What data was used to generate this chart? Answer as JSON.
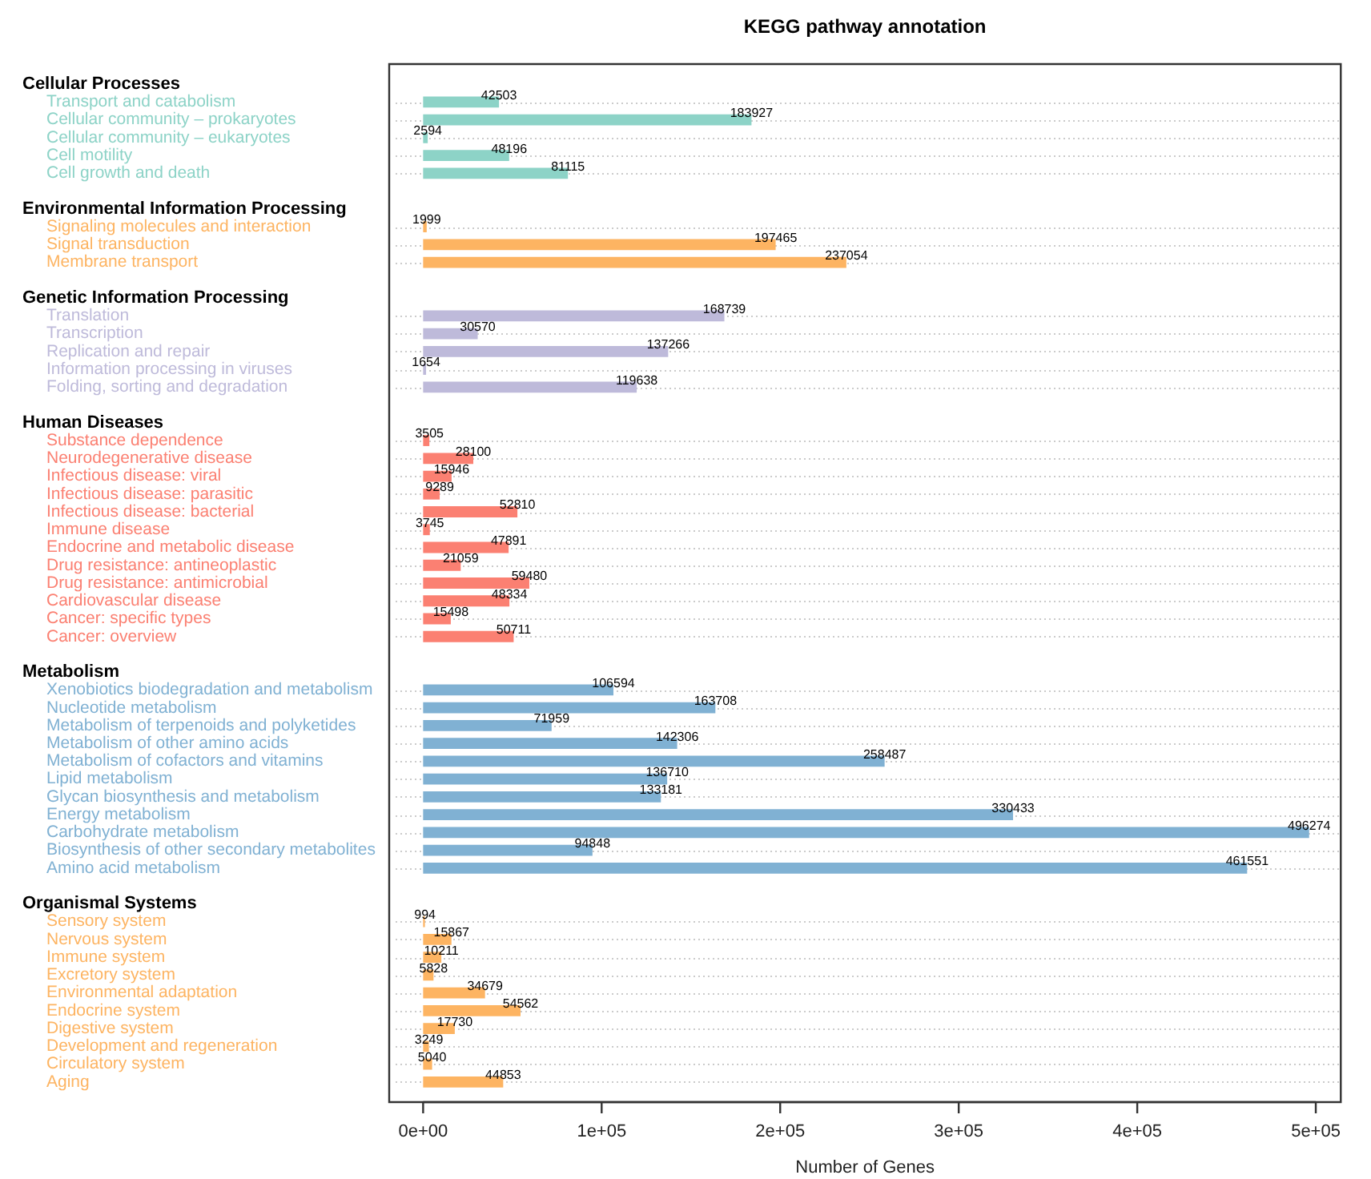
{
  "chart_data": {
    "type": "bar",
    "orientation": "horizontal",
    "title": "KEGG pathway annotation",
    "xlabel": "Number of Genes",
    "annotations": [
      "Cellular Processes",
      "Environmental Information Processing",
      "Genetic Information Processing",
      "Human Diseases",
      "Metabolism",
      "Organismal Systems"
    ],
    "categories": [
      null,
      "Transport and catabolism",
      "Cellular community – prokaryotes",
      "Cellular community – eukaryotes",
      "Cell motility",
      "Cell growth and death",
      null,
      null,
      "Signaling molecules and interaction",
      "Signal transduction",
      "Membrane transport",
      null,
      null,
      "Translation",
      "Transcription",
      "Replication and repair",
      "Information processing in viruses",
      "Folding, sorting and degradation",
      null,
      null,
      "Substance dependence",
      "Neurodegenerative disease",
      "Infectious disease: viral",
      "Infectious disease: parasitic",
      "Infectious disease: bacterial",
      "Immune disease",
      "Endocrine and metabolic disease",
      "Drug resistance: antineoplastic",
      "Drug resistance: antimicrobial",
      "Cardiovascular disease",
      "Cancer: specific types",
      "Cancer: overview",
      null,
      null,
      "Xenobiotics biodegradation and metabolism",
      "Nucleotide metabolism",
      "Metabolism of terpenoids and polyketides",
      "Metabolism of other amino acids",
      "Metabolism of cofactors and vitamins",
      "Lipid metabolism",
      "Glycan biosynthesis and metabolism",
      "Energy metabolism",
      "Carbohydrate metabolism",
      "Biosynthesis of other secondary metabolites",
      "Amino acid metabolism",
      null,
      null,
      "Sensory system",
      "Nervous system",
      "Immune system",
      "Excretory system",
      "Environmental adaptation",
      "Endocrine system",
      "Digestive system",
      "Development and regeneration",
      "Circulatory system",
      "Aging"
    ],
    "values": [
      null,
      42503,
      183927,
      2594,
      48196,
      81115,
      null,
      null,
      1999,
      197465,
      237054,
      null,
      null,
      168739,
      30570,
      137266,
      1654,
      119638,
      null,
      null,
      3505,
      28100,
      15946,
      9289,
      52810,
      3745,
      47891,
      21059,
      59480,
      48334,
      15498,
      50711,
      null,
      null,
      106594,
      163708,
      71959,
      142306,
      258487,
      136710,
      133181,
      330433,
      496274,
      94848,
      461551,
      null,
      null,
      994,
      15867,
      10211,
      5828,
      34679,
      54562,
      17730,
      3249,
      5040,
      44853
    ],
    "colors": [
      null,
      "#8dd3c7",
      "#8dd3c7",
      "#8dd3c7",
      "#8dd3c7",
      "#8dd3c7",
      null,
      null,
      "#fdb462",
      "#fdb462",
      "#fdb462",
      null,
      null,
      "#bebada",
      "#bebada",
      "#bebada",
      "#bebada",
      "#bebada",
      null,
      null,
      "#fb8072",
      "#fb8072",
      "#fb8072",
      "#fb8072",
      "#fb8072",
      "#fb8072",
      "#fb8072",
      "#fb8072",
      "#fb8072",
      "#fb8072",
      "#fb8072",
      "#fb8072",
      null,
      null,
      "#80b1d3",
      "#80b1d3",
      "#80b1d3",
      "#80b1d3",
      "#80b1d3",
      "#80b1d3",
      "#80b1d3",
      "#80b1d3",
      "#80b1d3",
      "#80b1d3",
      "#80b1d3",
      null,
      null,
      "#fdb462",
      "#fdb462",
      "#fdb462",
      "#fdb462",
      "#fdb462",
      "#fdb462",
      "#fdb462",
      "#fdb462",
      "#fdb462",
      "#fdb462"
    ],
    "xlim": [
      -19000,
      514000
    ],
    "xticks": [
      {
        "value": 0,
        "label": "0e+00"
      },
      {
        "value": 100000,
        "label": "1e+05"
      },
      {
        "value": 200000,
        "label": "2e+05"
      },
      {
        "value": 300000,
        "label": "3e+05"
      },
      {
        "value": 400000,
        "label": "4e+05"
      },
      {
        "value": 500000,
        "label": "5e+05"
      }
    ],
    "grid": "y",
    "data_labels": true
  }
}
